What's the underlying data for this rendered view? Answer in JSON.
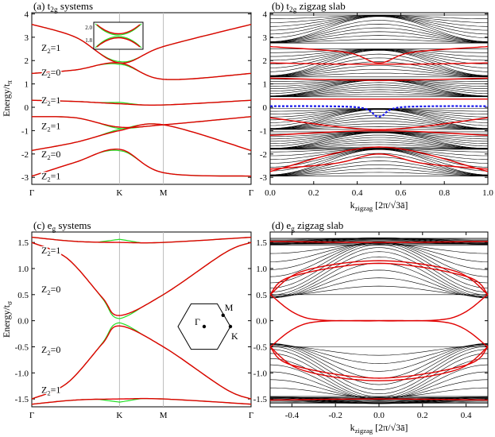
{
  "figure": "tight-binding band structures on the honeycomb lattice",
  "colors": {
    "band": "#e00000",
    "reference": "#22dd22",
    "slab": "#000000",
    "edge": "#e00000",
    "edge_state": "#1a1aee"
  },
  "chart_data": [
    {
      "id": "a",
      "type": "line",
      "panel_label": "(a)",
      "title_main": "t",
      "title_sub": "2g",
      "title_rest": " systems",
      "ylabel_main": "Energy/t",
      "ylabel_sub": "π",
      "ylim": [
        -3.3,
        4.05
      ],
      "yticks": [
        -3,
        -2,
        -1,
        0,
        1,
        2,
        3,
        4
      ],
      "xticks": [
        "Γ",
        "K",
        "M",
        "Γ"
      ],
      "z2_labels": [
        {
          "text": "Z",
          "sub": "2",
          "rest": "=1",
          "energy": 2.55
        },
        {
          "text": "Z",
          "sub": "2",
          "rest": "=0",
          "energy": 1.5
        },
        {
          "text": "Z",
          "sub": "2",
          "rest": "=1",
          "energy": 0.3
        },
        {
          "text": "Z",
          "sub": "2",
          "rest": "=1",
          "energy": -0.8
        },
        {
          "text": "Z",
          "sub": "2",
          "rest": "=0",
          "energy": -2.0
        },
        {
          "text": "Z",
          "sub": "2",
          "rest": "=1",
          "energy": -2.95
        }
      ],
      "inset": {
        "ylim": [
          1.72,
          2.12
        ],
        "yticks": [
          "2.0",
          "1.8"
        ]
      },
      "series": [
        {
          "name": "band-1",
          "points": [
            [
              0,
              3.55
            ],
            [
              0.5,
              3.0
            ],
            [
              1,
              1.9
            ],
            [
              1.5,
              2.6
            ],
            [
              2.5,
              3.55
            ]
          ]
        },
        {
          "name": "band-2",
          "points": [
            [
              0,
              1.45
            ],
            [
              0.5,
              1.6
            ],
            [
              1,
              1.9
            ],
            [
              1.5,
              1.2
            ],
            [
              2.5,
              1.45
            ]
          ]
        },
        {
          "name": "band-3",
          "points": [
            [
              0,
              0.3
            ],
            [
              0.5,
              0.25
            ],
            [
              1,
              0.15
            ],
            [
              1.5,
              0.1
            ],
            [
              2.5,
              0.3
            ]
          ]
        },
        {
          "name": "band-4",
          "points": [
            [
              0,
              -0.4
            ],
            [
              0.5,
              -0.45
            ],
            [
              1,
              -0.85
            ],
            [
              1.5,
              -0.75
            ],
            [
              2.5,
              -0.4
            ]
          ]
        },
        {
          "name": "band-5",
          "points": [
            [
              0,
              -1.85
            ],
            [
              0.5,
              -1.5
            ],
            [
              1,
              -1.0
            ],
            [
              1.5,
              -0.75
            ],
            [
              2.5,
              -1.85
            ]
          ]
        },
        {
          "name": "band-6",
          "points": [
            [
              0,
              -2.95
            ],
            [
              0.5,
              -2.35
            ],
            [
              1,
              -1.8
            ],
            [
              1.5,
              -2.8
            ],
            [
              2.5,
              -2.95
            ]
          ]
        }
      ]
    },
    {
      "id": "b",
      "type": "line",
      "panel_label": "(b)",
      "title_main": "t",
      "title_sub": "2g",
      "title_rest": " zigzag slab",
      "xlabel_main": "k",
      "xlabel_sub": "zigzag",
      "xlabel_rest": " [2π/√3ā]",
      "xlim": [
        0,
        1
      ],
      "ylim": [
        -3.3,
        4.05
      ],
      "xticks": [
        0.0,
        0.2,
        0.4,
        0.6,
        0.8,
        1.0
      ],
      "xticklabels": [
        "0.0",
        "0.2",
        "0.4",
        "0.6",
        "0.8",
        "1.0"
      ],
      "yticks": [
        -3,
        -2,
        -1,
        0,
        1,
        2,
        3,
        4
      ],
      "edge_states": [
        {
          "name": "edge-1",
          "points": [
            [
              0,
              2.6
            ],
            [
              0.35,
              2.35
            ],
            [
              0.5,
              1.9
            ],
            [
              0.65,
              2.35
            ],
            [
              1,
              2.6
            ]
          ]
        },
        {
          "name": "edge-2",
          "points": [
            [
              0,
              1.9
            ],
            [
              0.3,
              1.85
            ],
            [
              0.5,
              1.85
            ],
            [
              0.7,
              1.85
            ],
            [
              1,
              1.9
            ]
          ]
        },
        {
          "name": "edge-3",
          "points": [
            [
              0,
              1.25
            ],
            [
              0.5,
              1.15
            ],
            [
              1,
              1.25
            ]
          ]
        },
        {
          "name": "edge-4",
          "points": [
            [
              0,
              0.35
            ],
            [
              0.5,
              0.35
            ],
            [
              1,
              0.35
            ]
          ]
        },
        {
          "name": "edge-5",
          "points": [
            [
              0,
              -0.45
            ],
            [
              0.5,
              -0.95
            ],
            [
              1,
              -0.45
            ]
          ]
        },
        {
          "name": "edge-6",
          "points": [
            [
              0,
              -1.2
            ],
            [
              0.5,
              -1.0
            ],
            [
              1,
              -1.2
            ]
          ]
        },
        {
          "name": "edge-7",
          "points": [
            [
              0,
              -2.75
            ],
            [
              0.5,
              -1.7
            ],
            [
              1,
              -2.75
            ]
          ]
        },
        {
          "name": "edge-8",
          "points": [
            [
              0,
              -2.65
            ],
            [
              0.3,
              -2.4
            ],
            [
              0.5,
              -2.0
            ],
            [
              0.7,
              -2.4
            ],
            [
              1,
              -2.65
            ]
          ]
        }
      ],
      "dashed": {
        "name": "blue-edge",
        "points": [
          [
            0,
            0.05
          ],
          [
            0.4,
            0.0
          ],
          [
            0.5,
            -0.4
          ],
          [
            0.6,
            0.0
          ],
          [
            1,
            0.05
          ]
        ]
      }
    },
    {
      "id": "c",
      "type": "line",
      "panel_label": "(c)",
      "title_main": "e",
      "title_sub": "g",
      "title_rest": " systems",
      "ylabel_main": "Energy/t",
      "ylabel_sub": "σ",
      "ylim": [
        -1.65,
        1.7
      ],
      "yticks": [
        -1.5,
        -1.0,
        -0.5,
        0.0,
        0.5,
        1.0,
        1.5
      ],
      "yticklabels": [
        "-1.5",
        "-1.0",
        "-0.5",
        "0.0",
        "0.5",
        "1.0",
        "1.5"
      ],
      "xticks": [
        "Γ",
        "K",
        "M",
        "Γ"
      ],
      "z2_labels": [
        {
          "text": "Z",
          "sub": "2",
          "rest": "=1",
          "energy": 1.35
        },
        {
          "text": "Z",
          "sub": "2",
          "rest": "=0",
          "energy": 0.6
        },
        {
          "text": "Z",
          "sub": "2",
          "rest": "=0",
          "energy": -0.55
        },
        {
          "text": "Z",
          "sub": "2",
          "rest": "=1",
          "energy": -1.32
        }
      ],
      "bz_labels": [
        "Γ",
        "M",
        "K"
      ],
      "series": [
        {
          "name": "band-1",
          "points": [
            [
              0,
              1.6
            ],
            [
              0.5,
              1.52
            ],
            [
              1,
              1.5
            ],
            [
              1.5,
              1.5
            ],
            [
              2.5,
              1.6
            ]
          ]
        },
        {
          "name": "band-2",
          "points": [
            [
              0,
              1.5
            ],
            [
              0.4,
              1.2
            ],
            [
              0.8,
              0.45
            ],
            [
              1,
              0.1
            ],
            [
              1.5,
              0.5
            ],
            [
              2.2,
              1.3
            ],
            [
              2.5,
              1.5
            ]
          ]
        },
        {
          "name": "band-3",
          "points": [
            [
              0,
              -1.5
            ],
            [
              0.4,
              -1.2
            ],
            [
              0.8,
              -0.45
            ],
            [
              1,
              -0.1
            ],
            [
              1.5,
              -0.5
            ],
            [
              2.2,
              -1.3
            ],
            [
              2.5,
              -1.5
            ]
          ]
        },
        {
          "name": "band-4",
          "points": [
            [
              0,
              -1.6
            ],
            [
              0.5,
              -1.52
            ],
            [
              1,
              -1.5
            ],
            [
              1.5,
              -1.5
            ],
            [
              2.5,
              -1.6
            ]
          ]
        }
      ]
    },
    {
      "id": "d",
      "type": "line",
      "panel_label": "(d)",
      "title_main": "e",
      "title_sub": "g",
      "title_rest": " zigzag slab",
      "xlabel_main": "k",
      "xlabel_sub": "zigzag",
      "xlabel_rest": " [2π/√3ā]",
      "xlim": [
        -0.5,
        0.5
      ],
      "ylim": [
        -1.65,
        1.7
      ],
      "xticks": [
        -0.4,
        -0.2,
        0.0,
        0.2,
        0.4
      ],
      "xticklabels": [
        "-0.4",
        "-0.2",
        "0.0",
        "0.2",
        "0.4"
      ],
      "yticks": [
        -1.5,
        -1.0,
        -0.5,
        0.0,
        0.5,
        1.0,
        1.5
      ],
      "yticklabels": [
        "-1.5",
        "-1.0",
        "-0.5",
        "0.0",
        "0.5",
        "1.0",
        "1.5"
      ],
      "edge_states": [
        {
          "name": "edge-1",
          "points": [
            [
              -0.5,
              1.52
            ],
            [
              0,
              1.5
            ],
            [
              0.5,
              1.52
            ]
          ]
        },
        {
          "name": "edge-2",
          "points": [
            [
              -0.5,
              0.5
            ],
            [
              -0.35,
              0.95
            ],
            [
              0,
              1.15
            ],
            [
              0.35,
              0.95
            ],
            [
              0.5,
              0.5
            ]
          ]
        },
        {
          "name": "edge-3",
          "points": [
            [
              -0.5,
              0.5
            ],
            [
              -0.4,
              0.85
            ],
            [
              0,
              1.1
            ],
            [
              0.4,
              0.85
            ],
            [
              0.5,
              0.5
            ]
          ]
        },
        {
          "name": "edge-4",
          "points": [
            [
              -0.5,
              0.5
            ],
            [
              -0.33,
              0.05
            ],
            [
              0,
              0
            ],
            [
              0.33,
              -0.05
            ],
            [
              0.5,
              -0.5
            ]
          ]
        },
        {
          "name": "edge-5",
          "points": [
            [
              -0.5,
              -0.5
            ],
            [
              -0.33,
              -0.05
            ],
            [
              0,
              0
            ],
            [
              0.33,
              0.05
            ],
            [
              0.5,
              0.5
            ]
          ]
        },
        {
          "name": "edge-6",
          "points": [
            [
              -0.5,
              -0.5
            ],
            [
              -0.35,
              -0.95
            ],
            [
              0,
              -1.15
            ],
            [
              0.35,
              -0.95
            ],
            [
              0.5,
              -0.5
            ]
          ]
        },
        {
          "name": "edge-7",
          "points": [
            [
              -0.5,
              -0.5
            ],
            [
              -0.4,
              -0.85
            ],
            [
              0,
              -1.1
            ],
            [
              0.4,
              -0.85
            ],
            [
              0.5,
              -0.5
            ]
          ]
        },
        {
          "name": "edge-8",
          "points": [
            [
              -0.5,
              -1.52
            ],
            [
              0,
              -1.5
            ],
            [
              0.5,
              -1.52
            ]
          ]
        }
      ]
    }
  ]
}
